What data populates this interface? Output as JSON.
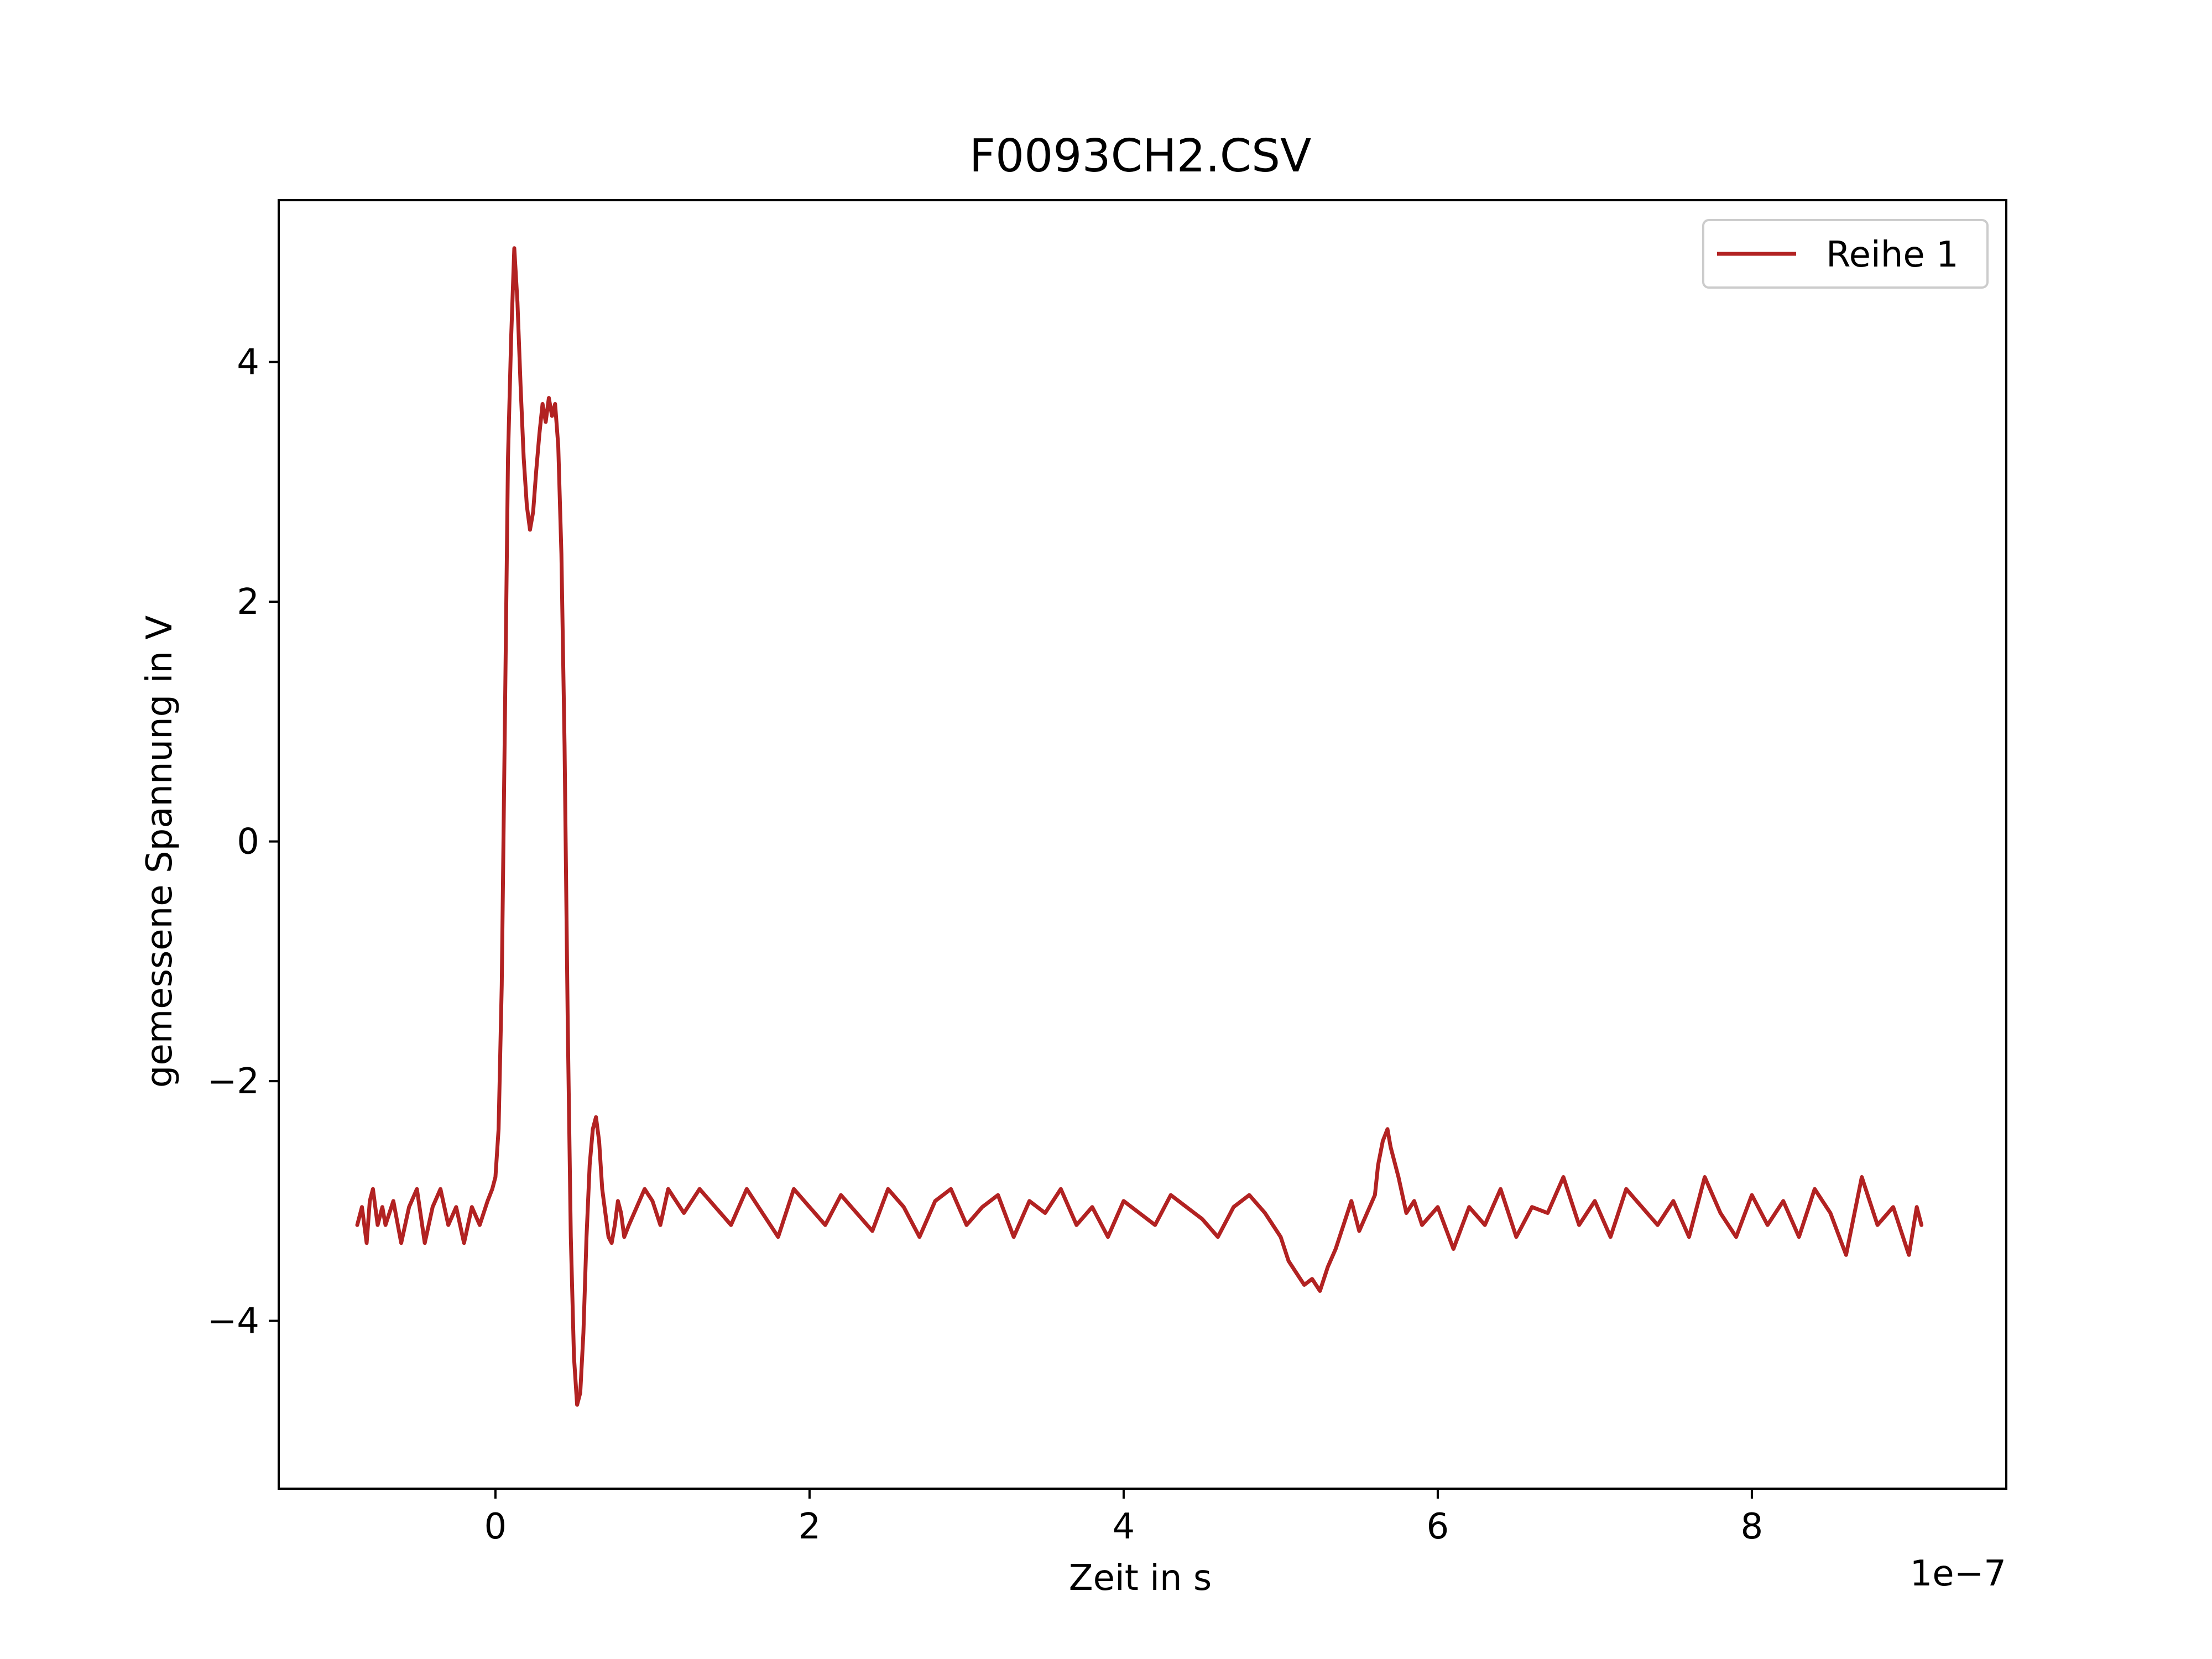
{
  "chart_data": {
    "type": "line",
    "title": "F0093CH2.CSV",
    "xlabel": "Zeit in s",
    "ylabel": "gemessene Spannung in V",
    "x_offset_label": "1e−7",
    "xlim": [
      -1.38,
      9.62
    ],
    "ylim": [
      -5.4,
      5.35
    ],
    "xticks": [
      0,
      2,
      4,
      6,
      8
    ],
    "xtick_labels": [
      "0",
      "2",
      "4",
      "6",
      "8"
    ],
    "yticks": [
      -4,
      -2,
      0,
      2,
      4
    ],
    "ytick_labels": [
      "−4",
      "−2",
      "0",
      "2",
      "4"
    ],
    "grid": false,
    "legend_position": "top-right",
    "series": [
      {
        "name": "Reihe 1",
        "color": "#b22222",
        "x": [
          -0.88,
          -0.85,
          -0.82,
          -0.8,
          -0.78,
          -0.75,
          -0.72,
          -0.7,
          -0.65,
          -0.6,
          -0.55,
          -0.5,
          -0.45,
          -0.4,
          -0.35,
          -0.3,
          -0.25,
          -0.2,
          -0.15,
          -0.1,
          -0.05,
          -0.02,
          0.0,
          0.02,
          0.04,
          0.06,
          0.08,
          0.1,
          0.12,
          0.14,
          0.16,
          0.18,
          0.2,
          0.22,
          0.24,
          0.26,
          0.28,
          0.3,
          0.32,
          0.34,
          0.36,
          0.38,
          0.4,
          0.42,
          0.44,
          0.46,
          0.48,
          0.5,
          0.52,
          0.54,
          0.56,
          0.58,
          0.6,
          0.62,
          0.64,
          0.66,
          0.68,
          0.7,
          0.72,
          0.74,
          0.76,
          0.78,
          0.8,
          0.82,
          0.85,
          0.9,
          0.95,
          1.0,
          1.05,
          1.1,
          1.2,
          1.3,
          1.4,
          1.5,
          1.6,
          1.7,
          1.8,
          1.9,
          2.0,
          2.1,
          2.2,
          2.3,
          2.4,
          2.5,
          2.6,
          2.7,
          2.8,
          2.9,
          3.0,
          3.1,
          3.2,
          3.3,
          3.4,
          3.5,
          3.6,
          3.7,
          3.8,
          3.9,
          4.0,
          4.1,
          4.2,
          4.3,
          4.4,
          4.5,
          4.6,
          4.7,
          4.8,
          4.9,
          5.0,
          5.05,
          5.1,
          5.15,
          5.2,
          5.25,
          5.3,
          5.35,
          5.4,
          5.45,
          5.5,
          5.55,
          5.6,
          5.62,
          5.65,
          5.68,
          5.7,
          5.75,
          5.8,
          5.85,
          5.9,
          6.0,
          6.1,
          6.2,
          6.3,
          6.4,
          6.5,
          6.6,
          6.7,
          6.8,
          6.9,
          7.0,
          7.1,
          7.2,
          7.3,
          7.4,
          7.5,
          7.6,
          7.7,
          7.8,
          7.9,
          8.0,
          8.1,
          8.2,
          8.3,
          8.4,
          8.5,
          8.6,
          8.7,
          8.8,
          8.9,
          9.0,
          9.05,
          9.08
        ],
        "y": [
          -3.2,
          -3.05,
          -3.35,
          -3.0,
          -2.9,
          -3.2,
          -3.05,
          -3.2,
          -3.0,
          -3.35,
          -3.05,
          -2.9,
          -3.35,
          -3.05,
          -2.9,
          -3.2,
          -3.05,
          -3.35,
          -3.05,
          -3.2,
          -3.0,
          -2.9,
          -2.8,
          -2.4,
          -1.2,
          1.0,
          3.2,
          4.2,
          4.95,
          4.5,
          3.8,
          3.2,
          2.8,
          2.6,
          2.75,
          3.1,
          3.4,
          3.65,
          3.5,
          3.7,
          3.55,
          3.65,
          3.3,
          2.4,
          0.8,
          -1.5,
          -3.3,
          -4.3,
          -4.7,
          -4.6,
          -4.1,
          -3.3,
          -2.7,
          -2.4,
          -2.3,
          -2.5,
          -2.9,
          -3.1,
          -3.3,
          -3.35,
          -3.2,
          -3.0,
          -3.1,
          -3.3,
          -3.2,
          -3.05,
          -2.9,
          -3.0,
          -3.2,
          -2.9,
          -3.1,
          -2.9,
          -3.05,
          -3.2,
          -2.9,
          -3.1,
          -3.3,
          -2.9,
          -3.05,
          -3.2,
          -2.95,
          -3.1,
          -3.25,
          -2.9,
          -3.05,
          -3.3,
          -3.0,
          -2.9,
          -3.2,
          -3.05,
          -2.95,
          -3.3,
          -3.0,
          -3.1,
          -2.9,
          -3.2,
          -3.05,
          -3.3,
          -3.0,
          -3.1,
          -3.2,
          -2.95,
          -3.05,
          -3.15,
          -3.3,
          -3.05,
          -2.95,
          -3.1,
          -3.3,
          -3.5,
          -3.6,
          -3.7,
          -3.65,
          -3.75,
          -3.55,
          -3.4,
          -3.2,
          -3.0,
          -3.25,
          -3.1,
          -2.95,
          -2.7,
          -2.5,
          -2.4,
          -2.55,
          -2.8,
          -3.1,
          -3.0,
          -3.2,
          -3.05,
          -3.4,
          -3.05,
          -3.2,
          -2.9,
          -3.3,
          -3.05,
          -3.1,
          -2.8,
          -3.2,
          -3.0,
          -3.3,
          -2.9,
          -3.05,
          -3.2,
          -3.0,
          -3.3,
          -2.8,
          -3.1,
          -3.3,
          -2.95,
          -3.2,
          -3.0,
          -3.3,
          -2.9,
          -3.1,
          -3.45,
          -2.8,
          -3.2,
          -3.05,
          -3.45,
          -3.05,
          -3.2
        ]
      }
    ]
  }
}
